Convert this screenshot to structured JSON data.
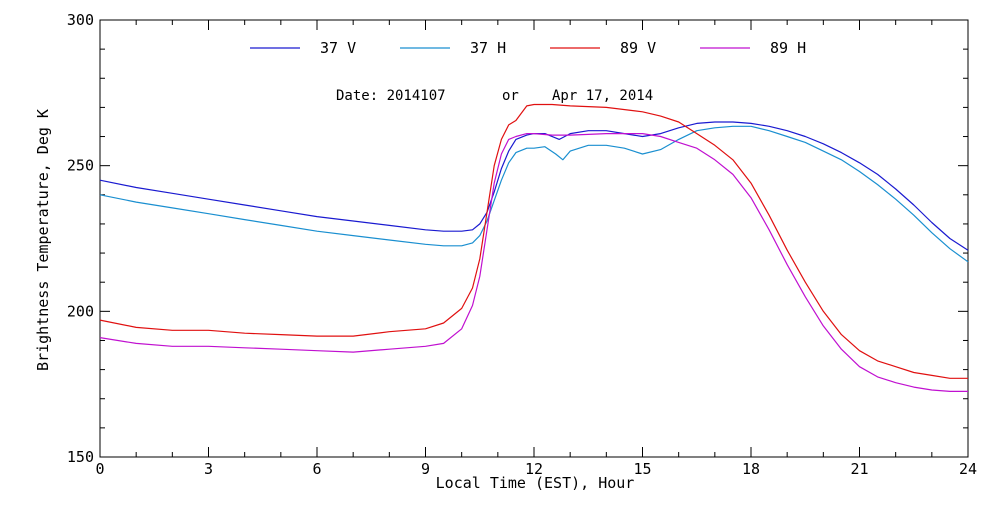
{
  "chart_data": {
    "type": "line",
    "title": "",
    "annotation": {
      "date_label": "Date: 2014107",
      "or_label": "or",
      "date_text": "Apr 17, 2014"
    },
    "xlabel": "Local Time (EST), Hour",
    "ylabel": "Brightness Temperature, Deg K",
    "xlim": [
      0,
      24
    ],
    "ylim": [
      150,
      300
    ],
    "xticks": [
      0,
      3,
      6,
      9,
      12,
      15,
      18,
      21,
      24
    ],
    "xtick_labels": [
      "0",
      "3",
      "6",
      "9",
      "12",
      "15",
      "18",
      "21",
      "24"
    ],
    "yticks": [
      150,
      200,
      250,
      300
    ],
    "ytick_labels": [
      "150",
      "200",
      "250",
      "300"
    ],
    "grid": false,
    "legend_position": "top",
    "series": [
      {
        "name": "37 V",
        "color": "#1a1ad0",
        "x": [
          0,
          1,
          2,
          3,
          4,
          5,
          6,
          7,
          8,
          9,
          9.5,
          10,
          10.3,
          10.5,
          10.7,
          10.9,
          11.1,
          11.3,
          11.5,
          11.8,
          12,
          12.3,
          12.7,
          13,
          13.5,
          14,
          14.5,
          15,
          15.5,
          16,
          16.5,
          17,
          17.5,
          18,
          18.5,
          19,
          19.5,
          20,
          20.5,
          21,
          21.5,
          22,
          22.5,
          23,
          23.5,
          24
        ],
        "y": [
          245,
          242.5,
          240.5,
          238.5,
          236.5,
          234.5,
          232.5,
          231,
          229.5,
          228,
          227.5,
          227.5,
          228,
          230,
          234,
          241,
          249,
          255,
          259,
          260.5,
          261,
          261,
          259,
          261,
          262,
          262,
          261,
          260,
          261,
          263,
          264.5,
          265,
          265,
          264.5,
          263.5,
          262,
          260,
          257.5,
          254.5,
          251,
          247,
          242,
          236.5,
          230.5,
          225,
          221
        ]
      },
      {
        "name": "37 H",
        "color": "#1a8fd0",
        "x": [
          0,
          1,
          2,
          3,
          4,
          5,
          6,
          7,
          8,
          9,
          9.5,
          10,
          10.3,
          10.5,
          10.7,
          10.9,
          11.1,
          11.3,
          11.5,
          11.8,
          12,
          12.3,
          12.6,
          12.8,
          13,
          13.5,
          14,
          14.5,
          15,
          15.5,
          16,
          16.5,
          17,
          17.5,
          18,
          18.5,
          19,
          19.5,
          20,
          20.5,
          21,
          21.5,
          22,
          22.5,
          23,
          23.5,
          24
        ],
        "y": [
          240,
          237.5,
          235.5,
          233.5,
          231.5,
          229.5,
          227.5,
          226,
          224.5,
          223,
          222.5,
          222.5,
          223.5,
          226,
          231,
          238,
          245,
          251,
          254.5,
          256,
          256,
          256.5,
          254,
          252,
          255,
          257,
          257,
          256,
          254,
          255.5,
          259,
          262,
          263,
          263.5,
          263.5,
          262,
          260,
          258,
          255,
          252,
          248,
          243.5,
          238.5,
          233,
          227,
          221.5,
          217
        ]
      },
      {
        "name": "89 V",
        "color": "#e01010",
        "x": [
          0,
          1,
          2,
          3,
          4,
          5,
          6,
          7,
          8,
          9,
          9.5,
          10,
          10.3,
          10.5,
          10.7,
          10.9,
          11.1,
          11.3,
          11.5,
          11.8,
          12,
          12.5,
          13,
          14,
          15,
          15.5,
          16,
          16.5,
          17,
          17.5,
          18,
          18.5,
          19,
          19.5,
          20,
          20.5,
          21,
          21.5,
          22,
          22.5,
          23,
          23.5,
          24
        ],
        "y": [
          197,
          194.5,
          193.5,
          193.5,
          192.5,
          192,
          191.5,
          191.5,
          193,
          194,
          196,
          201,
          208,
          218,
          234,
          250,
          259,
          264,
          265.5,
          270.5,
          271,
          271,
          270.5,
          270,
          268.5,
          267,
          265,
          261,
          257,
          252,
          244,
          233,
          221,
          210,
          200,
          192,
          186.5,
          183,
          181,
          179,
          178,
          177,
          177
        ]
      },
      {
        "name": "89 H",
        "color": "#c010d0",
        "x": [
          0,
          1,
          2,
          3,
          4,
          5,
          6,
          7,
          8,
          9,
          9.5,
          10,
          10.3,
          10.5,
          10.7,
          10.9,
          11.1,
          11.3,
          11.5,
          11.8,
          12,
          12.5,
          13,
          14,
          15,
          15.5,
          16,
          16.5,
          17,
          17.5,
          18,
          18.5,
          19,
          19.5,
          20,
          20.5,
          21,
          21.5,
          22,
          22.5,
          23,
          23.5,
          24
        ],
        "y": [
          191,
          189,
          188,
          188,
          187.5,
          187,
          186.5,
          186,
          187,
          188,
          189,
          194,
          202,
          212,
          228,
          244,
          254,
          259,
          260,
          261,
          261,
          260.5,
          260.5,
          261,
          261,
          260,
          258,
          256,
          252,
          247,
          239,
          228,
          216,
          205,
          195,
          187,
          181,
          177.5,
          175.5,
          174,
          173,
          172.5,
          172.5
        ]
      }
    ]
  }
}
